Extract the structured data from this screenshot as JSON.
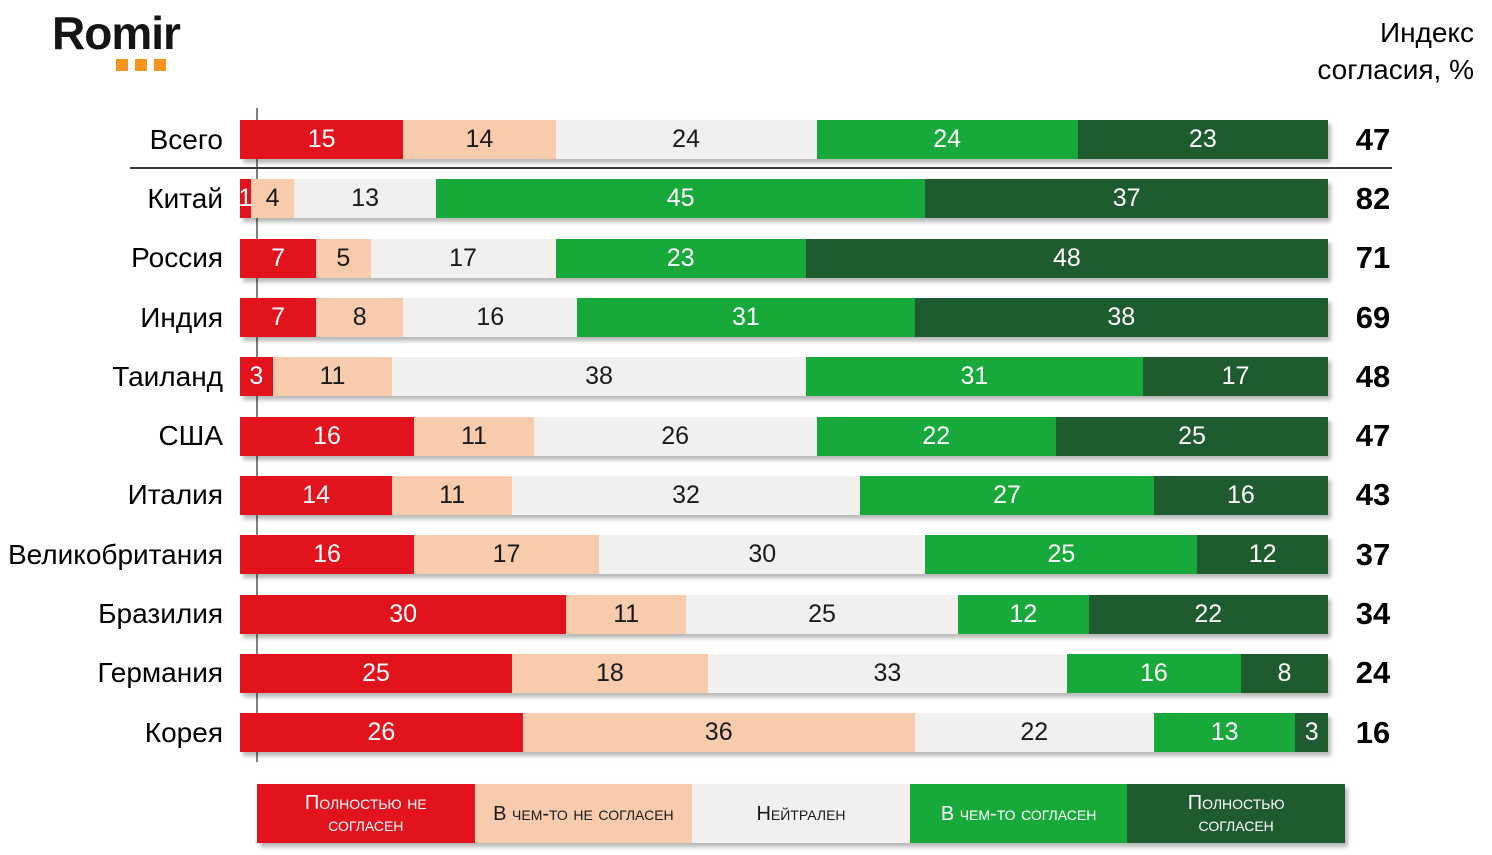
{
  "header": {
    "logo_text": "Romir",
    "index_title": "Индекс согласия, %"
  },
  "colors": {
    "logo_dots": "#F7941D",
    "axis_line": "#808080",
    "divider": "#3A3A3A"
  },
  "chart_data": {
    "type": "bar",
    "variant": "horizontal-stacked-100",
    "title": "Индекс согласия, %",
    "unit": "%",
    "xlim": [
      0,
      100
    ],
    "grid": false,
    "legend_position": "bottom",
    "categories": [
      "Всего",
      "Китай",
      "Россия",
      "Индия",
      "Таиланд",
      "США",
      "Италия",
      "Великобритания",
      "Бразилия",
      "Германия",
      "Корея"
    ],
    "series": [
      {
        "name": "Полностью не согласен",
        "legend_lines": [
          "Полностью не",
          "согласен"
        ],
        "color": "#E2131D",
        "text_color": "#FFFFFF",
        "values": [
          15,
          1,
          7,
          7,
          3,
          16,
          14,
          16,
          30,
          25,
          26
        ]
      },
      {
        "name": "В чем-то не согласен",
        "legend_lines": [
          "В чем-то не согласен"
        ],
        "color": "#F8CBAD",
        "text_color": "#1A1A1A",
        "values": [
          14,
          4,
          5,
          8,
          11,
          11,
          11,
          17,
          11,
          18,
          36
        ]
      },
      {
        "name": "Нейтрален",
        "legend_lines": [
          "Нейтрален"
        ],
        "color": "#F1F0EE",
        "text_color": "#1A1A1A",
        "values": [
          24,
          13,
          17,
          16,
          38,
          26,
          32,
          30,
          25,
          33,
          22
        ]
      },
      {
        "name": "В чем-то согласен",
        "legend_lines": [
          "В чем-то согласен"
        ],
        "color": "#18A93B",
        "text_color": "#FFFFFF",
        "values": [
          24,
          45,
          23,
          31,
          31,
          22,
          27,
          25,
          12,
          16,
          13
        ]
      },
      {
        "name": "Полностью согласен",
        "legend_lines": [
          "Полностью",
          "согласен"
        ],
        "color": "#1E5B2E",
        "text_color": "#FFFFFF",
        "values": [
          23,
          37,
          48,
          38,
          17,
          25,
          16,
          12,
          22,
          8,
          3
        ]
      }
    ],
    "agreement_index": {
      "label": "Индекс согласия, %",
      "values": [
        47,
        82,
        71,
        69,
        48,
        47,
        43,
        37,
        34,
        24,
        16
      ]
    }
  }
}
